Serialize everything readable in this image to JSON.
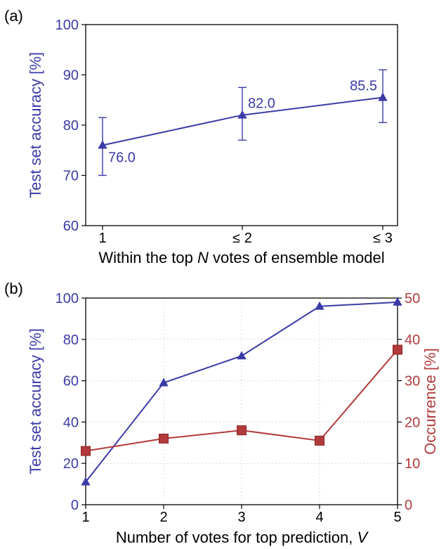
{
  "colors": {
    "blue": "#3b3ba8",
    "red": "#b23a3a",
    "axis": "#000000",
    "grid": "#d9d9d9"
  },
  "chart_data": [
    {
      "panel_label": "(a)",
      "type": "line",
      "marker": "triangle",
      "categories": [
        "1",
        "≤ 2",
        "≤ 3"
      ],
      "x_prefix": "Within the top ",
      "x_italic": "N",
      "x_suffix": " votes of ensemble model",
      "ylabel": "Test set accuracy [%]",
      "ylim": [
        60,
        100
      ],
      "yticks": [
        "60",
        "70",
        "80",
        "90",
        "100"
      ],
      "grid": false,
      "series": [
        {
          "values": [
            76.0,
            82.0,
            85.5
          ],
          "labels": [
            "76.0",
            "82.0",
            "85.5"
          ],
          "error_low": [
            70.0,
            77.0,
            80.5
          ],
          "error_high": [
            81.5,
            87.5,
            91.0
          ],
          "color": "#3b3ba8"
        }
      ]
    },
    {
      "panel_label": "(b)",
      "type": "line",
      "x": [
        1,
        2,
        3,
        4,
        5
      ],
      "xticks": [
        "1",
        "2",
        "3",
        "4",
        "5"
      ],
      "x_prefix": "Number of votes for top prediction, ",
      "x_italic": "V",
      "x_suffix": "",
      "ylabel_left": "Test set accuracy [%]",
      "ylabel_right": "Occurrence [%]",
      "ylim_left": [
        0,
        100
      ],
      "ylim_right": [
        0,
        50
      ],
      "yticks_left": [
        "0",
        "20",
        "40",
        "60",
        "80",
        "100"
      ],
      "yticks_right": [
        "0",
        "10",
        "20",
        "30",
        "40",
        "50"
      ],
      "grid": true,
      "series": [
        {
          "axis": "left",
          "marker": "triangle",
          "color": "#3b3ba8",
          "values": [
            11,
            59,
            72,
            96,
            98
          ]
        },
        {
          "axis": "right",
          "marker": "square",
          "color": "#b23a3a",
          "values": [
            13,
            16,
            18,
            15.5,
            37.5
          ]
        }
      ]
    }
  ]
}
